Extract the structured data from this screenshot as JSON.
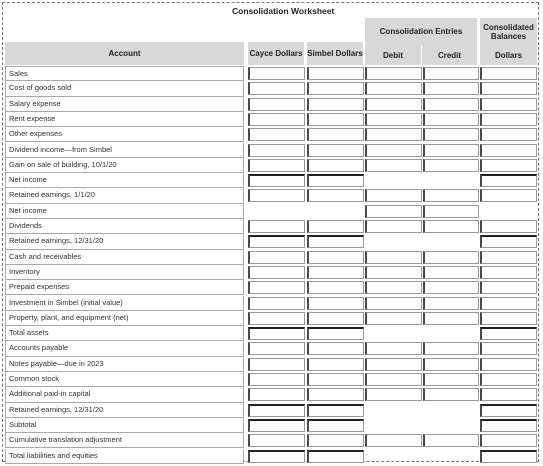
{
  "title": "Consolidation Worksheet",
  "headers": {
    "account": "Account",
    "cayce": "Cayce Dollars",
    "simbel": "Simbel Dollars",
    "entries": "Consolidation Entries",
    "debit": "Debit",
    "credit": "Credit",
    "consolidated": "Consolidated Balances",
    "dollars": "Dollars"
  },
  "rows": [
    {
      "label": "Sales"
    },
    {
      "label": "Cost of goods sold"
    },
    {
      "label": "Salary expense"
    },
    {
      "label": "Rent expense"
    },
    {
      "label": "Other expenses"
    },
    {
      "label": "Dividend income—from Simbel"
    },
    {
      "label": "Gain on sale of building, 10/1/20"
    },
    {
      "label": "Net income"
    },
    {
      "label": "Retained earnings, 1/1/20"
    },
    {
      "label": "Net income"
    },
    {
      "label": "Dividends"
    },
    {
      "label": "Retained earnings, 12/31/20"
    },
    {
      "label": "Cash and receivables"
    },
    {
      "label": "Inventory"
    },
    {
      "label": "Prepaid expenses"
    },
    {
      "label": "Investment in Simbel (initial value)"
    },
    {
      "label": "Property, plant, and equipment (net)"
    },
    {
      "label": "Total assets"
    },
    {
      "label": "Accounts payable"
    },
    {
      "label": "Notes payable—due in 2023"
    },
    {
      "label": "Common stock"
    },
    {
      "label": "Additional paid-in capital"
    },
    {
      "label": "Retained earnings, 12/31/20"
    },
    {
      "label": "Subtotal"
    },
    {
      "label": "Cumulative translation adjustment"
    },
    {
      "label": "Total liabilities and equities"
    }
  ]
}
